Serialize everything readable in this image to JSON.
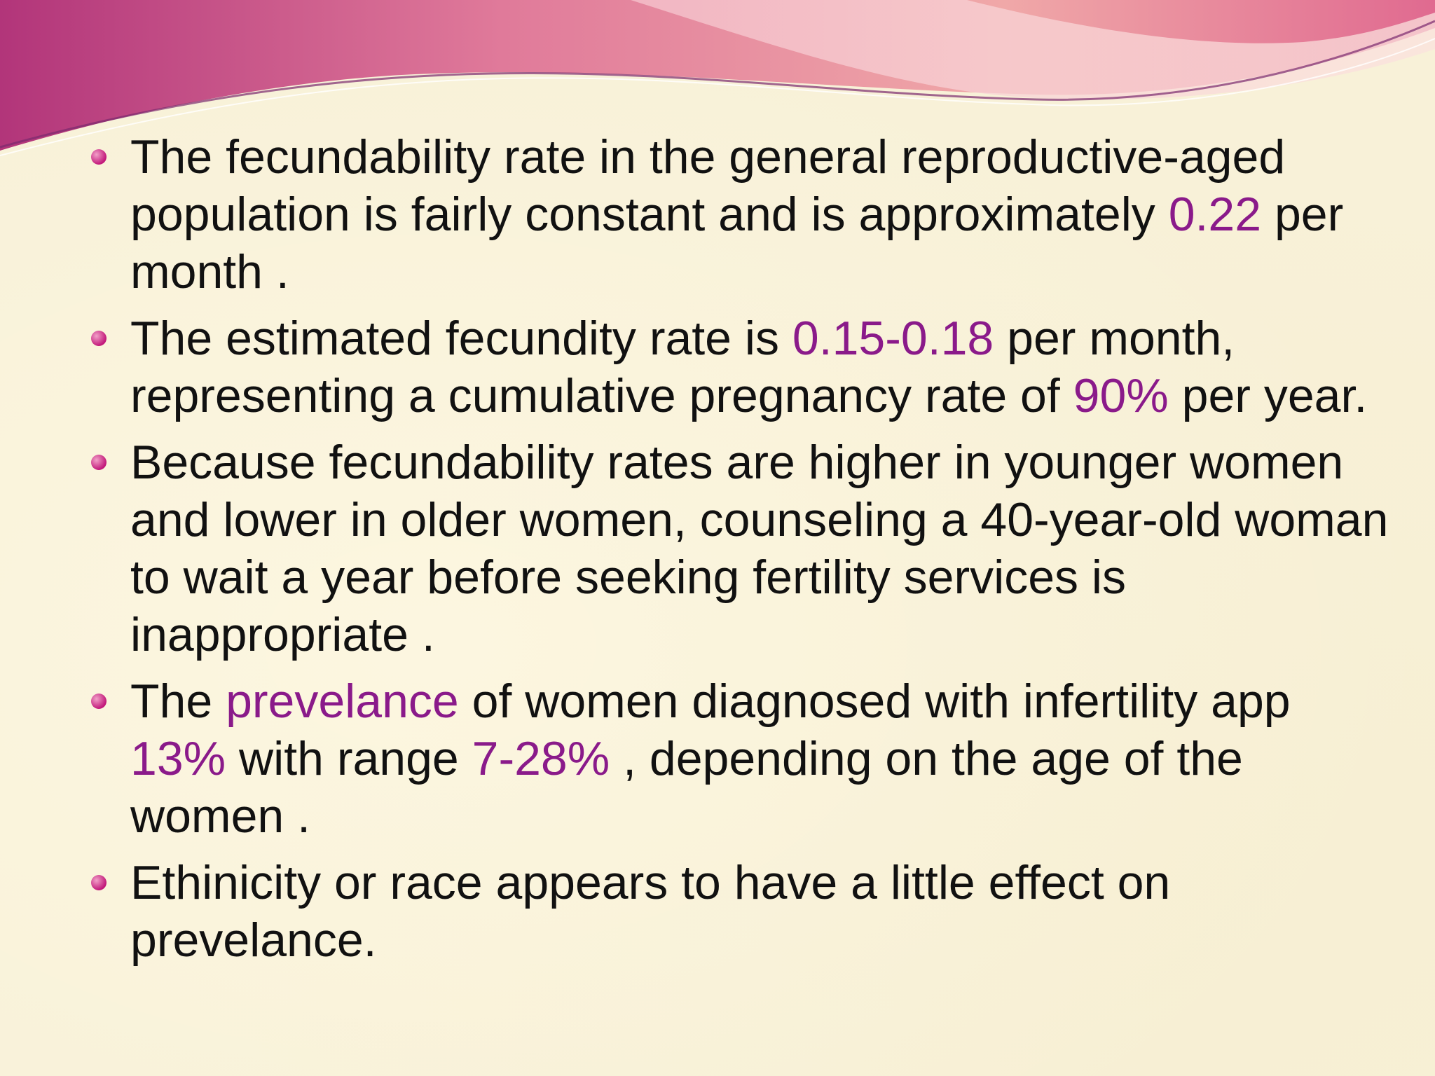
{
  "theme": {
    "background": "#f8f1d8",
    "highlight_color": "#8a1a8a",
    "text_color": "#111111",
    "header_wave_color": "#d9528a"
  },
  "bullets": [
    {
      "t1": "The fecundability rate in the general reproductive-aged population is fairly constant and is approximately ",
      "h1": "0.22",
      "t2": " per month ."
    },
    {
      "t1": " The estimated fecundity rate is ",
      "h1": "0.15-0.18",
      "t2": " per month, representing a cumulative pregnancy rate of ",
      "h2": "90%",
      "t3": " per year."
    },
    {
      "t1": " Because fecundability rates are higher in younger women and lower in older women, counseling a 40-year-old woman to wait a year before seeking fertility services is inappropriate ."
    },
    {
      "t1": " The ",
      "h1": "prevelance",
      "t2": " of women diagnosed with infertility app ",
      "h2": "13%",
      "t3": " with range ",
      "h3": "7-28%",
      "t4": " , depending on the age of the women ."
    },
    {
      "t1": "Ethinicity or race appears to have a little effect on prevelance."
    }
  ]
}
